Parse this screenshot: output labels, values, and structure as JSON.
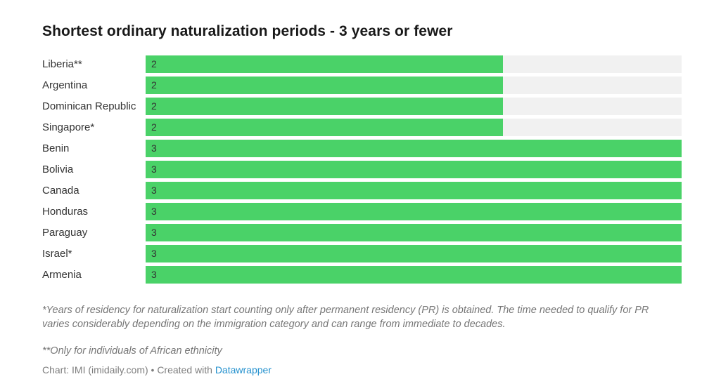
{
  "chart_data": {
    "type": "bar",
    "orientation": "horizontal",
    "title": "Shortest ordinary naturalization periods - 3 years or fewer",
    "categories": [
      "Liberia**",
      "Argentina",
      "Dominican Republic",
      "Singapore*",
      "Benin",
      "Bolivia",
      "Canada",
      "Honduras",
      "Paraguay",
      "Israel*",
      "Armenia"
    ],
    "values": [
      2,
      2,
      2,
      2,
      3,
      3,
      3,
      3,
      3,
      3,
      3
    ],
    "xlim": [
      0,
      3
    ],
    "value_labels_shown": true,
    "legend": "none",
    "grid": "off",
    "bar_color": "#4ad268",
    "track_color": "#f1f1f1"
  },
  "footnotes": {
    "note1": "*Years of residency for naturalization start counting only after permanent residency (PR) is obtained. The time needed to qualify for PR varies considerably depending on the immigration category and can range from immediate to decades.",
    "note2": "**Only for individuals of African ethnicity"
  },
  "attribution": {
    "prefix": "Chart: IMI (imidaily.com) • Created with ",
    "link_label": "Datawrapper",
    "link_color": "#2491ce"
  }
}
